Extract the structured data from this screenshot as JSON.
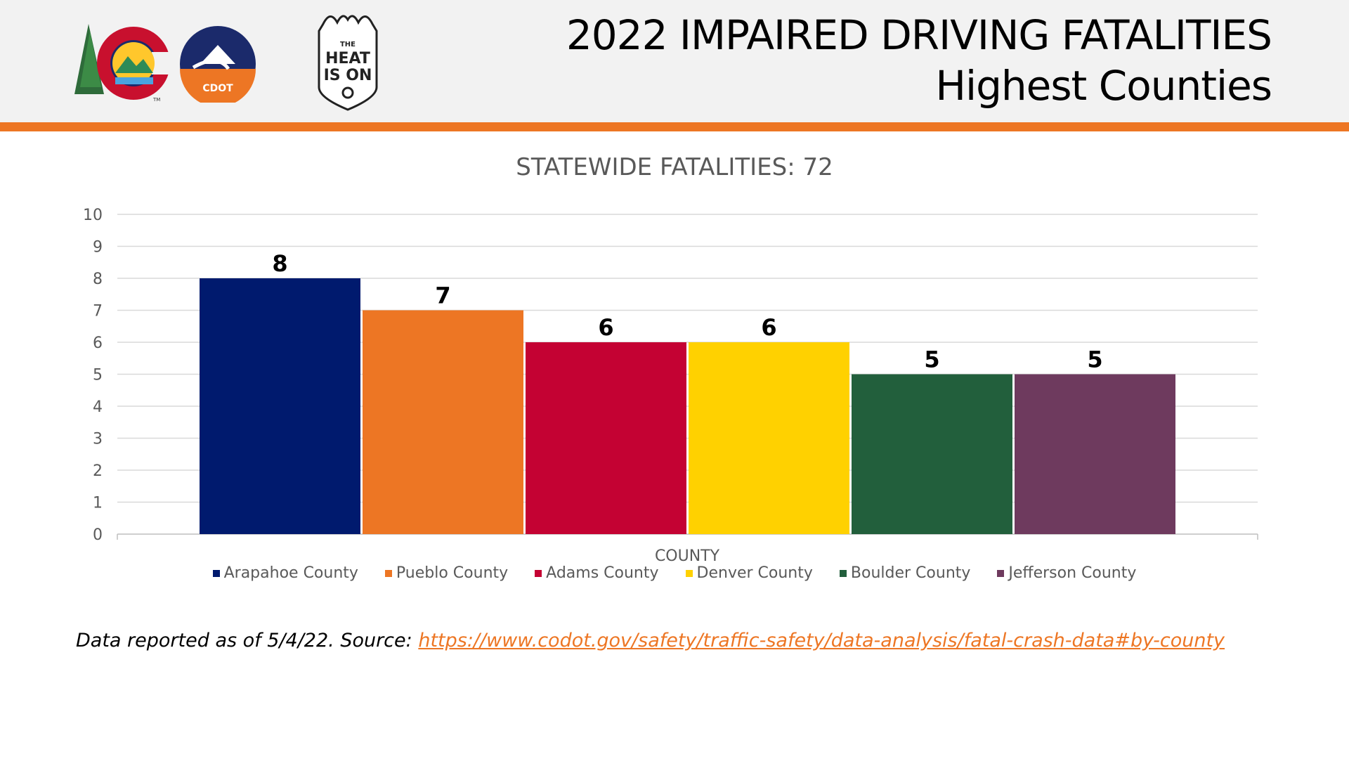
{
  "header": {
    "title_line1": "2022 IMPAIRED DRIVING FATALITIES",
    "title_line2": "Highest Counties"
  },
  "logos": {
    "cdot_text": "CDOT",
    "tm": "TM",
    "heat_line1": "THE",
    "heat_line2": "HEAT",
    "heat_line3": "IS ON"
  },
  "chart_data": {
    "type": "bar",
    "title": "STATEWIDE FATALITIES: 72",
    "xlabel": "COUNTY",
    "ylabel": "",
    "ylim": [
      0,
      10
    ],
    "yticks": [
      0,
      1,
      2,
      3,
      4,
      5,
      6,
      7,
      8,
      9,
      10
    ],
    "grid": true,
    "legend_position": "bottom",
    "series": [
      {
        "name": "Arapahoe County",
        "value": 8,
        "color": "#001A6E"
      },
      {
        "name": "Pueblo County",
        "value": 7,
        "color": "#ED7624"
      },
      {
        "name": "Adams County",
        "value": 6,
        "color": "#C40233"
      },
      {
        "name": "Denver County",
        "value": 6,
        "color": "#FFD100"
      },
      {
        "name": "Boulder County",
        "value": 5,
        "color": "#225F3C"
      },
      {
        "name": "Jefferson County",
        "value": 5,
        "color": "#6E3A5E"
      }
    ]
  },
  "footnote": {
    "prefix": "Data reported as of 5/4/22. Source: ",
    "link": "https://www.codot.gov/safety/traffic-safety/data-analysis/fatal-crash-data#by-county"
  }
}
